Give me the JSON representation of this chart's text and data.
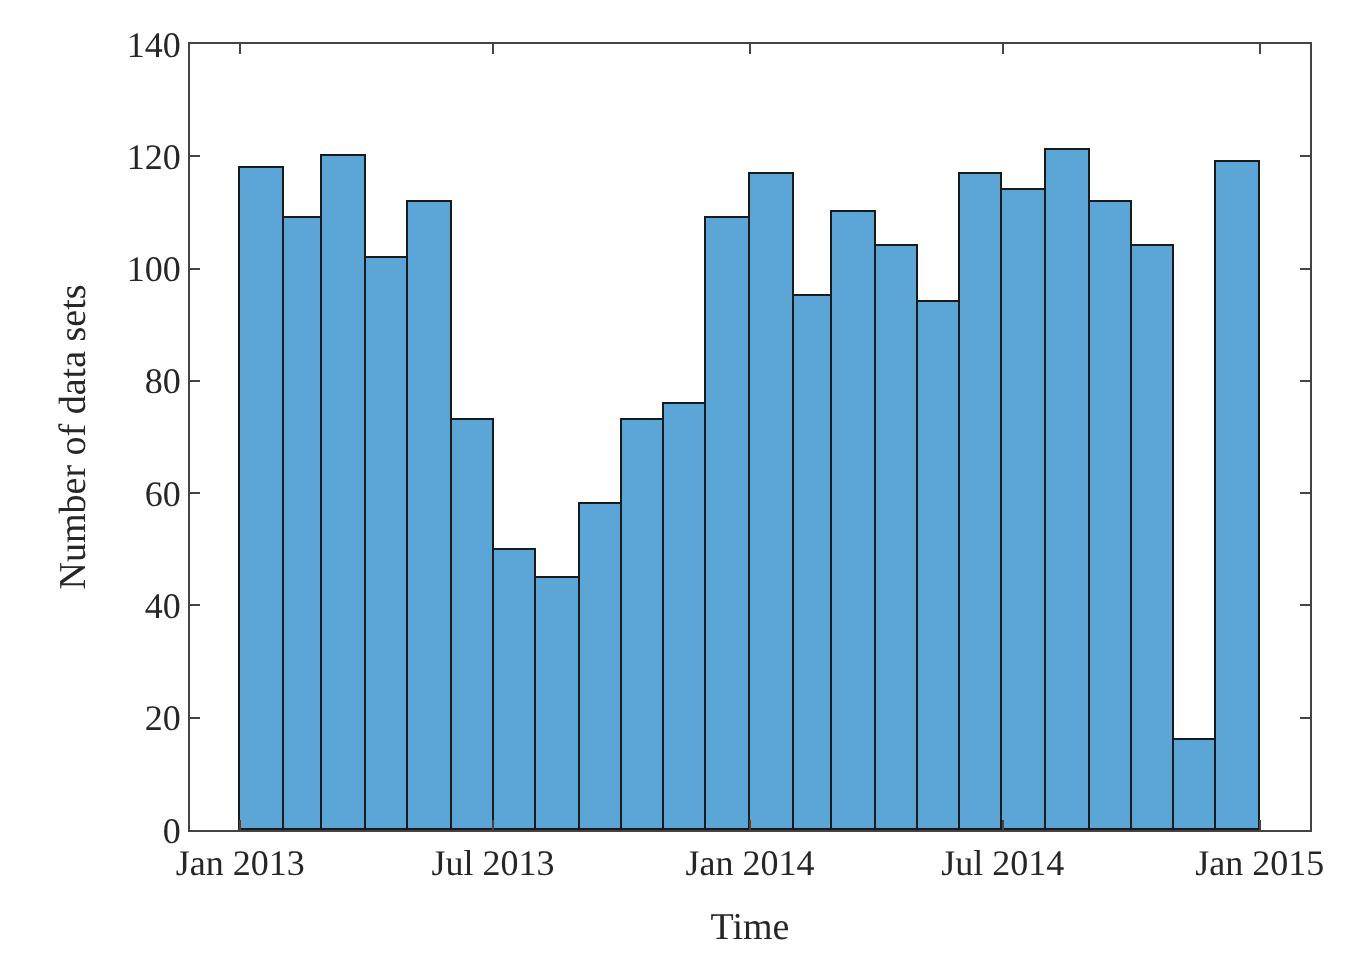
{
  "chart_data": {
    "type": "histogram",
    "xlabel": "Time",
    "ylabel": "Number of data sets",
    "bins": [
      "2013-01",
      "2013-02",
      "2013-03",
      "2013-04",
      "2013-05",
      "2013-06",
      "2013-07",
      "2013-08",
      "2013-09",
      "2013-10",
      "2013-11",
      "2013-12",
      "2014-01",
      "2014-02",
      "2014-03",
      "2014-04",
      "2014-05",
      "2014-06",
      "2014-07",
      "2014-08",
      "2014-09",
      "2014-10",
      "2014-11",
      "2014-12",
      "2015-01"
    ],
    "values": [
      118,
      109,
      120,
      102,
      112,
      73,
      50,
      45,
      58,
      73,
      76,
      109,
      117,
      95,
      110,
      104,
      94,
      117,
      114,
      121,
      112,
      104,
      16,
      119
    ],
    "color": "#5ba5d7",
    "xlim": [
      "2012-11-26",
      "2015-02-06"
    ],
    "xticks": [
      {
        "value": "2013-01",
        "label": "Jan 2013"
      },
      {
        "value": "2013-07",
        "label": "Jul 2013"
      },
      {
        "value": "2014-01",
        "label": "Jan 2014"
      },
      {
        "value": "2014-07",
        "label": "Jul 2014"
      },
      {
        "value": "2015-01",
        "label": "Jan 2015"
      }
    ],
    "ylim": [
      0,
      140
    ],
    "yticks": [
      0,
      20,
      40,
      60,
      80,
      100,
      120,
      140
    ]
  }
}
